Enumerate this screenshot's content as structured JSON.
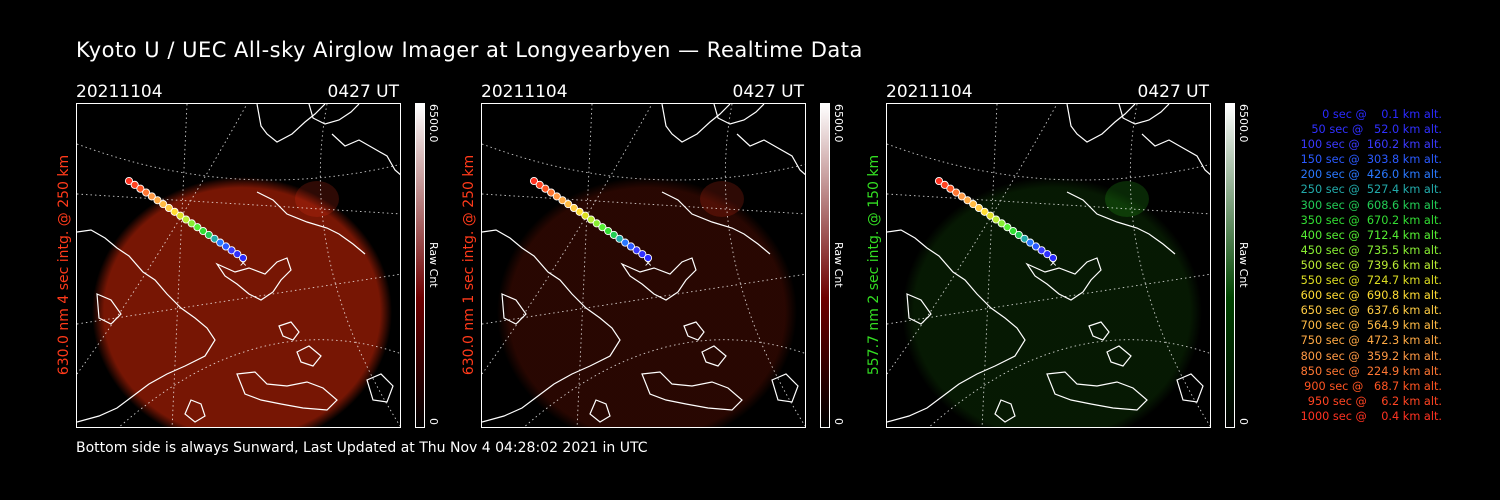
{
  "title": "Kyoto U / UEC All-sky Airglow Imager at Longyearbyen — Realtime Data",
  "footer": "Bottom side is always Sunward, Last Updated at Thu Nov  4 04:28:02 2021 in UTC",
  "panels": [
    {
      "date": "20211104",
      "time": "0427 UT",
      "side_label": "630.0 nm 4 sec intg. @ 250 km",
      "label_color": "#ff3a1a",
      "glow_color": "#8c1a05",
      "glow_opacity": 0.85,
      "colorbar_max": "6500.0",
      "colorbar_min": "0",
      "colorbar_title": "Raw Cnt",
      "colorbar_top": "#ffffff",
      "colorbar_bottom": "#6e0000"
    },
    {
      "date": "20211104",
      "time": "0427 UT",
      "side_label": "630.0 nm 1 sec intg. @ 250 km",
      "label_color": "#ff3a1a",
      "glow_color": "#3a0a02",
      "glow_opacity": 0.7,
      "colorbar_max": "6500.0",
      "colorbar_min": "0",
      "colorbar_title": "Raw Cnt",
      "colorbar_top": "#ffffff",
      "colorbar_bottom": "#6e0000"
    },
    {
      "date": "20211104",
      "time": "0427 UT",
      "side_label": "557.7 nm 2 sec intg. @ 150 km",
      "label_color": "#33dd22",
      "glow_color": "#0b2a05",
      "glow_opacity": 0.6,
      "colorbar_max": "6500.0",
      "colorbar_min": "0",
      "colorbar_title": "Raw Cnt",
      "colorbar_top": "#ffffff",
      "colorbar_bottom": "#004400"
    }
  ],
  "trajectory_legend": [
    {
      "text": "   0 sec @    0.1 km alt.",
      "color": "#2a2aff"
    },
    {
      "text": "  50 sec @   52.0 km alt.",
      "color": "#3030ff"
    },
    {
      "text": " 100 sec @  160.2 km alt.",
      "color": "#3a3aff"
    },
    {
      "text": " 150 sec @  303.8 km alt.",
      "color": "#2a5aff"
    },
    {
      "text": " 200 sec @  426.0 km alt.",
      "color": "#2a78ff"
    },
    {
      "text": " 250 sec @  527.4 km alt.",
      "color": "#22aaaa"
    },
    {
      "text": " 300 sec @  608.6 km alt.",
      "color": "#22cc55"
    },
    {
      "text": " 350 sec @  670.2 km alt.",
      "color": "#33dd33"
    },
    {
      "text": " 400 sec @  712.4 km alt.",
      "color": "#55ee33"
    },
    {
      "text": " 450 sec @  735.5 km alt.",
      "color": "#88ee33"
    },
    {
      "text": " 500 sec @  739.6 km alt.",
      "color": "#bbee33"
    },
    {
      "text": " 550 sec @  724.7 km alt.",
      "color": "#dddd22"
    },
    {
      "text": " 600 sec @  690.8 km alt.",
      "color": "#ffdd33"
    },
    {
      "text": " 650 sec @  637.6 km alt.",
      "color": "#ffcc44"
    },
    {
      "text": " 700 sec @  564.9 km alt.",
      "color": "#ffbb44"
    },
    {
      "text": " 750 sec @  472.3 km alt.",
      "color": "#ffaa44"
    },
    {
      "text": " 800 sec @  359.2 km alt.",
      "color": "#ff9944"
    },
    {
      "text": " 850 sec @  224.9 km alt.",
      "color": "#ff7733"
    },
    {
      "text": " 900 sec @   68.7 km alt.",
      "color": "#ff5522"
    },
    {
      "text": " 950 sec @    6.2 km alt.",
      "color": "#ff4422"
    },
    {
      "text": "1000 sec @    0.4 km alt.",
      "color": "#ff3322"
    }
  ]
}
